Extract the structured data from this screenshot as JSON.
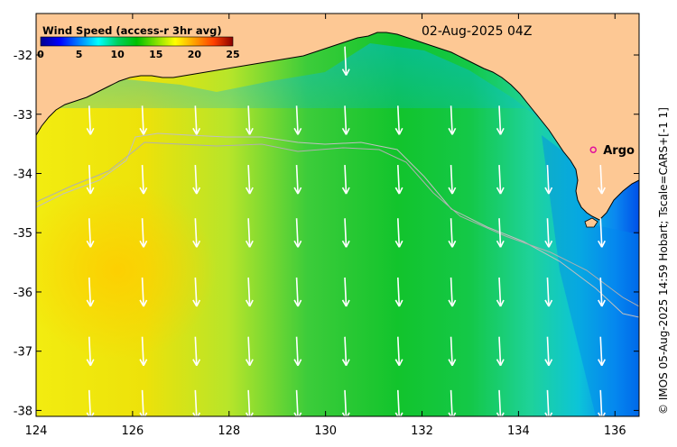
{
  "map": {
    "date_label": "02-Aug-2025 04Z",
    "credit": "© IMOS 05-Aug-2025 14:59 Hobart; Tscale=CARS+[-1 1]",
    "marker": {
      "label": "Argo",
      "lon": 135.55,
      "lat": -33.6,
      "color": "#e0109c"
    },
    "x_ticks": [
      {
        "value": 124,
        "label": "124"
      },
      {
        "value": 126,
        "label": "126"
      },
      {
        "value": 128,
        "label": "128"
      },
      {
        "value": 130,
        "label": "130"
      },
      {
        "value": 132,
        "label": "132"
      },
      {
        "value": 134,
        "label": "134"
      },
      {
        "value": 136,
        "label": "136"
      }
    ],
    "y_ticks": [
      {
        "value": -32,
        "label": "-32"
      },
      {
        "value": -33,
        "label": "-33"
      },
      {
        "value": -34,
        "label": "-34"
      },
      {
        "value": -35,
        "label": "-35"
      },
      {
        "value": -36,
        "label": "-36"
      },
      {
        "value": -37,
        "label": "-37"
      },
      {
        "value": -38,
        "label": "-38"
      }
    ],
    "lon_range": [
      124,
      136.5
    ],
    "lat_range": [
      -38.1,
      -31.3
    ],
    "land_color": "#fdc894",
    "arrow_color": "#ffffff",
    "arrow_lons": [
      125.1,
      126.2,
      127.3,
      128.4,
      129.4,
      130.4,
      131.5,
      132.6,
      133.6,
      134.6,
      135.7
    ],
    "arrow_lats": [
      -32.1,
      -33.1,
      -34.1,
      -35.0,
      -36.0,
      -37.0,
      -37.9
    ]
  },
  "legend": {
    "title": "Wind Speed (access-r 3hr avg)",
    "ticks": [
      {
        "value": 0,
        "label": "0"
      },
      {
        "value": 5,
        "label": "5"
      },
      {
        "value": 10,
        "label": "10"
      },
      {
        "value": 15,
        "label": "15"
      },
      {
        "value": 20,
        "label": "20"
      },
      {
        "value": 25,
        "label": "25"
      }
    ],
    "range": [
      0,
      25
    ],
    "colors": [
      "#00008f",
      "#0000ff",
      "#0080ff",
      "#00ffff",
      "#00d060",
      "#00c000",
      "#80e000",
      "#ffff00",
      "#ffa000",
      "#ff4000",
      "#8b0000"
    ]
  }
}
